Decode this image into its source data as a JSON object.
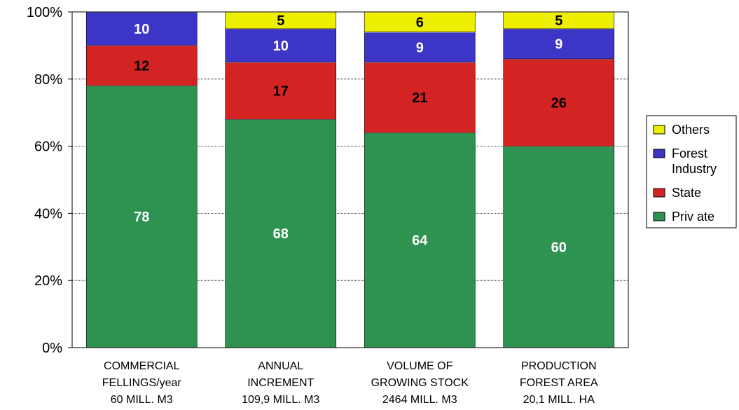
{
  "chart_data": {
    "type": "bar",
    "stacked": true,
    "percent": true,
    "categories": [
      [
        "COMMERCIAL",
        "FELLINGS/year",
        "60 MILL. M3"
      ],
      [
        "ANNUAL",
        "INCREMENT",
        "109,9 MILL. M3"
      ],
      [
        "VOLUME OF",
        "GROWING STOCK",
        "2464 MILL. M3"
      ],
      [
        "PRODUCTION",
        "FOREST AREA",
        "20,1 MILL. HA"
      ]
    ],
    "series": [
      {
        "name": "Private",
        "legend_lines": [
          "Priv ate"
        ],
        "color": "#2e9250",
        "label_color": "#ffffff",
        "values": [
          78,
          68,
          64,
          60
        ]
      },
      {
        "name": "State",
        "legend_lines": [
          "State"
        ],
        "color": "#d42323",
        "label_color": "#000000",
        "values": [
          12,
          17,
          21,
          26
        ]
      },
      {
        "name": "Forest Industry",
        "legend_lines": [
          "Forest",
          "Industry"
        ],
        "color": "#3d35c6",
        "label_color": "#ffffff",
        "values": [
          10,
          10,
          9,
          9
        ]
      },
      {
        "name": "Others",
        "legend_lines": [
          "Others"
        ],
        "color": "#eeee00",
        "label_color": "#000000",
        "values": [
          null,
          5,
          6,
          5
        ]
      }
    ],
    "y_ticks": [
      "0%",
      "20%",
      "40%",
      "60%",
      "80%",
      "100%"
    ],
    "ylim": [
      0,
      100
    ],
    "grid": true,
    "legend": "right",
    "title": "",
    "xlabel": "",
    "ylabel": ""
  }
}
